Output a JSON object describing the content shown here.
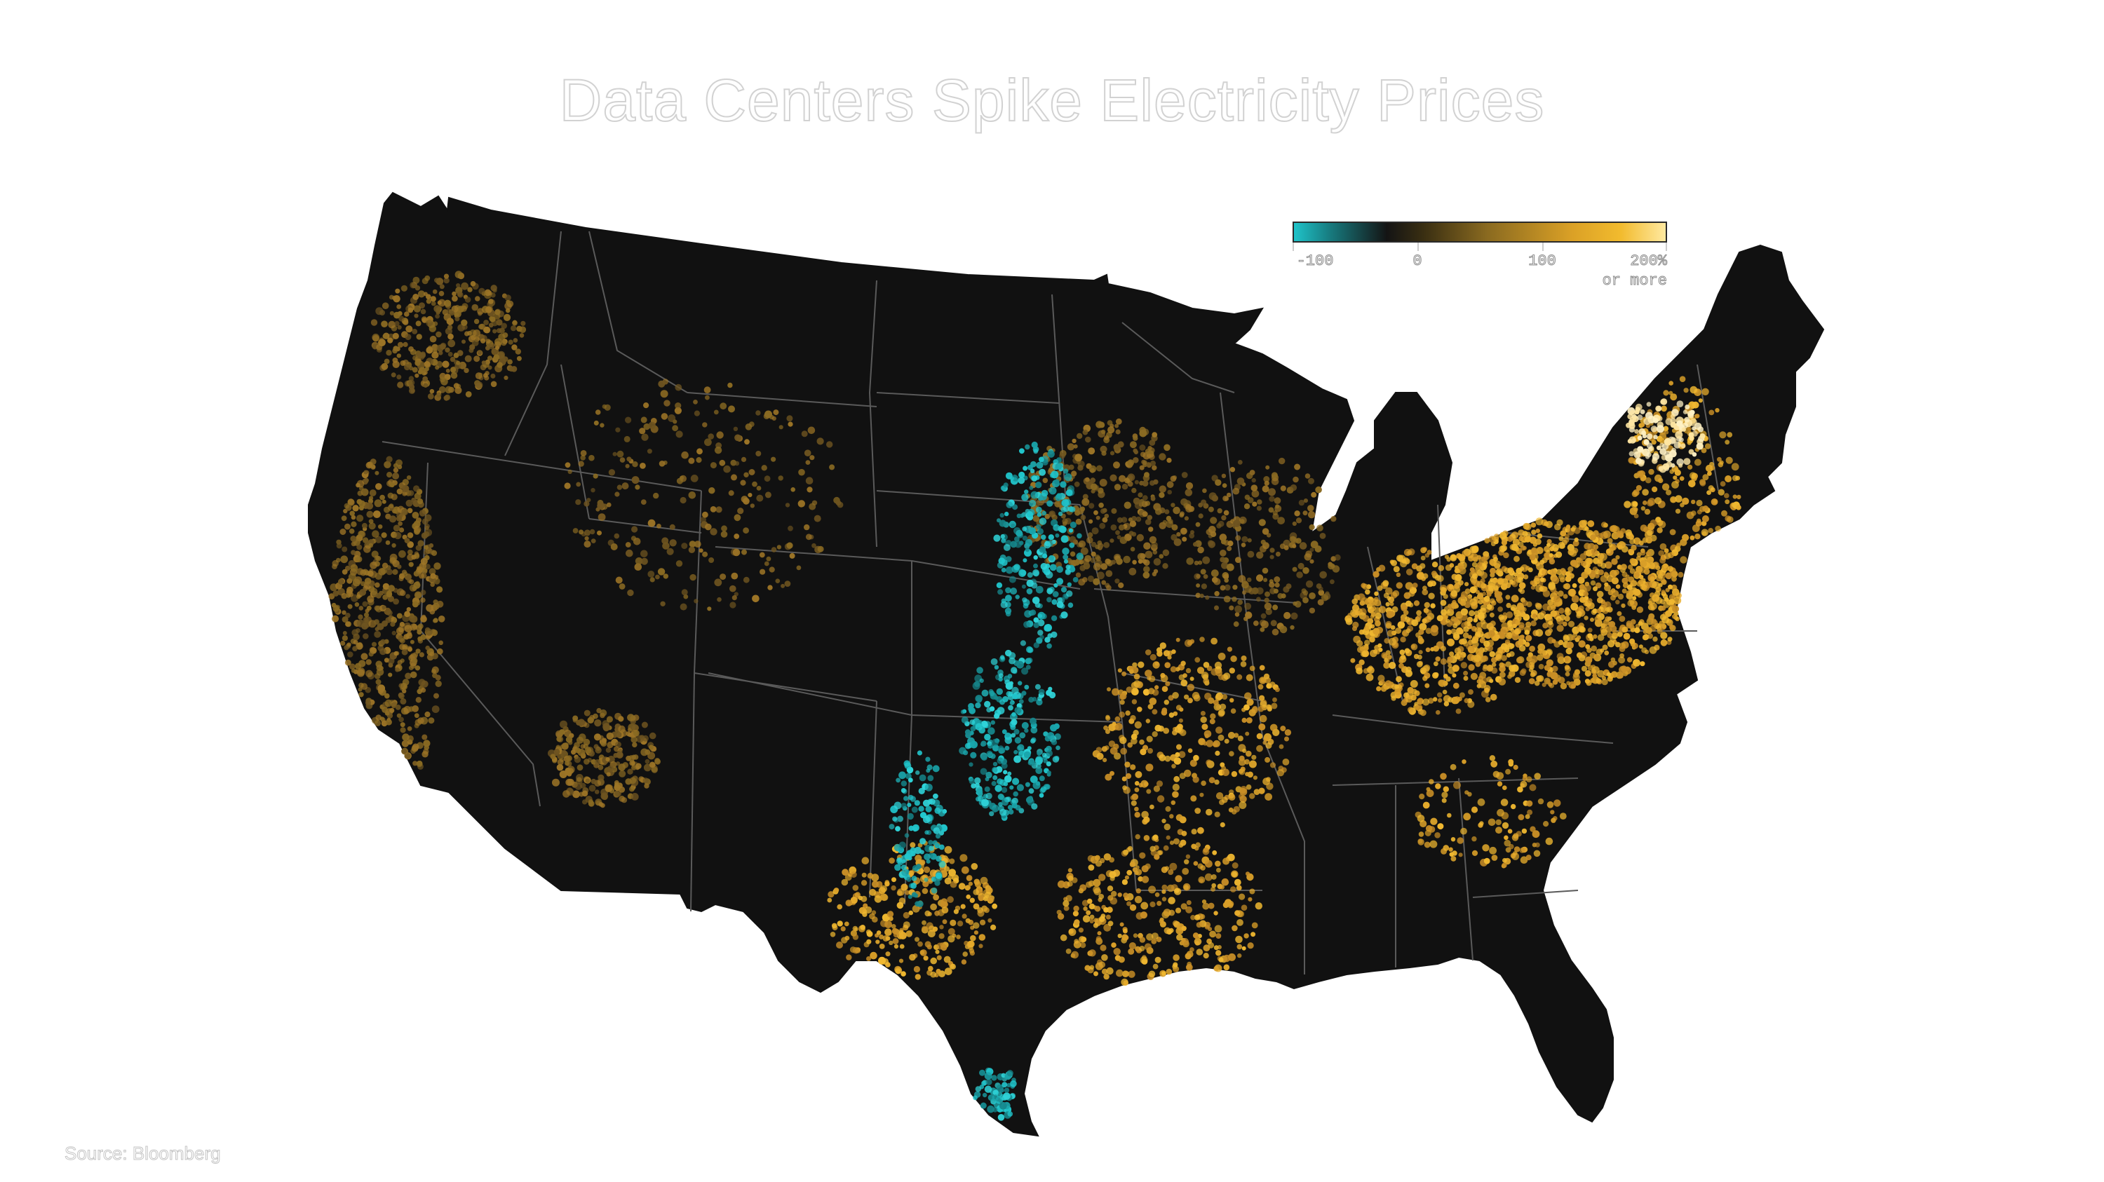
{
  "title": "Data Centers Spike Electricity Prices",
  "source": "Source: Bloomberg",
  "legend": {
    "labels": [
      "-100",
      "0",
      "100",
      "200%"
    ],
    "last_sub": "or more",
    "colors": {
      "low": "#1fc3c9",
      "zero": "#141414",
      "mid": "#dba126",
      "high": "#ffe9a0"
    }
  },
  "map": {
    "land_color": "#111111",
    "border_color": "#5a5a5a"
  }
}
